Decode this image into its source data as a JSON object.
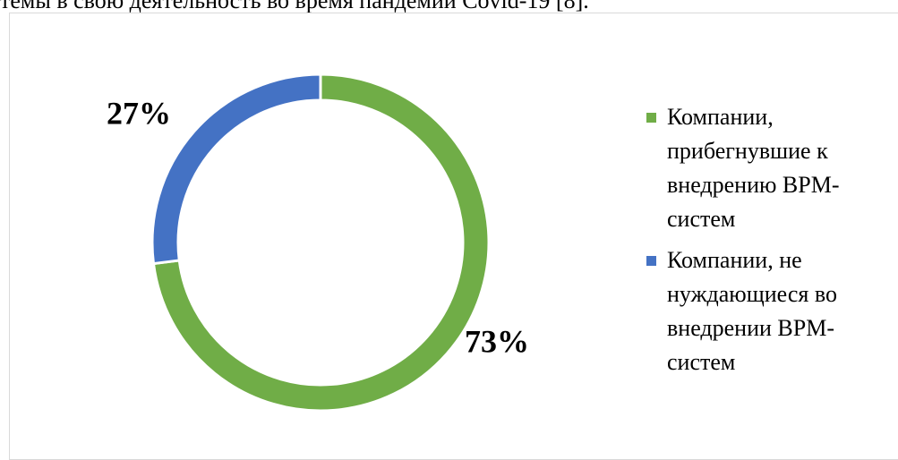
{
  "caption": "темы в свою деятельность во время пандемии Covid-19 [8].",
  "chart_data": {
    "type": "donut",
    "categories": [
      "Компании, прибегнувшие к внедрению BPM-систем",
      "Компании, не нуждающиеся во внедрении BPM-систем"
    ],
    "values": [
      73,
      27
    ],
    "value_labels": [
      "73%",
      "27%"
    ],
    "colors": [
      "#70ad47",
      "#4472c4"
    ],
    "legend": "right"
  }
}
